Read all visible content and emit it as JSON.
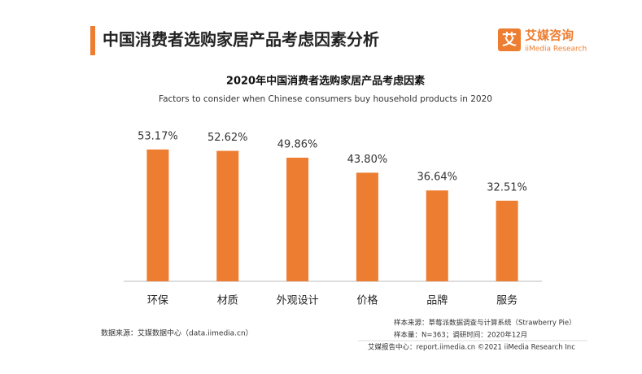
{
  "header": {
    "title": "中国消费者选购家居产品考虑因素分析",
    "logo_icon": "艾",
    "logo_name": "艾媒咨询",
    "logo_en": "iiMedia Research"
  },
  "chart_data": {
    "type": "bar",
    "title": "2020年中国消费者选购家居产品考虑因素",
    "subtitle": "Factors to consider when Chinese consumers buy household products in 2020",
    "categories": [
      "环保",
      "材质",
      "外观设计",
      "价格",
      "品牌",
      "服务"
    ],
    "values": [
      53.17,
      52.62,
      49.86,
      43.8,
      36.64,
      32.51
    ],
    "value_labels": [
      "53.17%",
      "52.62%",
      "49.86%",
      "43.80%",
      "36.64%",
      "32.51%"
    ],
    "color": "#ed7d31",
    "ylim": [
      0,
      60
    ]
  },
  "footer": {
    "data_source": "数据来源：艾媒数据中心（data.iimedia.cn）",
    "sample_source": "样本来源：草莓派数据调查与计算系统（Strawberry Pie）",
    "sample_size": "样本量：N=363；调研时间：2020年12月",
    "report_center": "艾媒报告中心：report.iimedia.cn  ©2021  iiMedia Research  Inc"
  }
}
